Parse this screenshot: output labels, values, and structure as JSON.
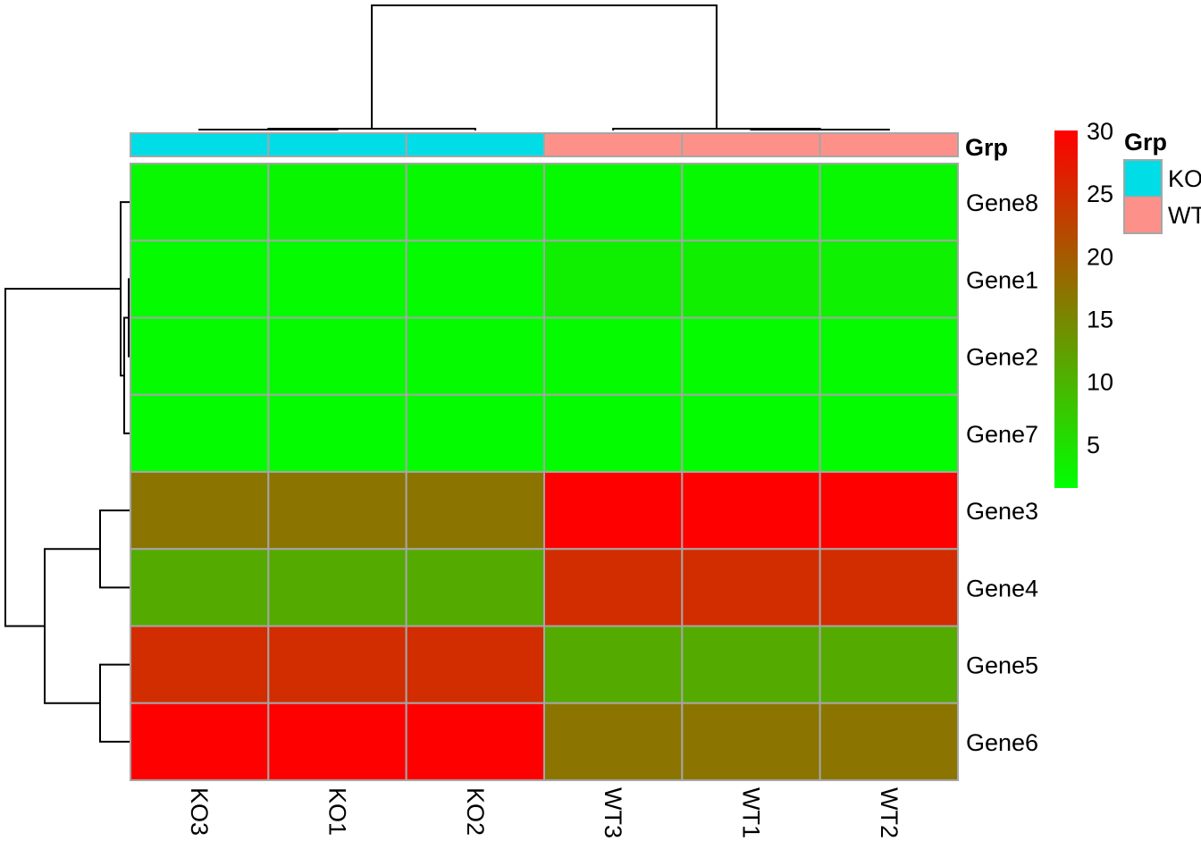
{
  "chart_data": {
    "type": "heatmap",
    "columns": [
      "KO3",
      "KO1",
      "KO2",
      "WT3",
      "WT1",
      "WT2"
    ],
    "rows": [
      "Gene8",
      "Gene1",
      "Gene2",
      "Gene7",
      "Gene3",
      "Gene4",
      "Gene5",
      "Gene6"
    ],
    "values": [
      [
        2.3,
        2.4,
        2.2,
        2.1,
        2.2,
        2.3
      ],
      [
        2.0,
        1.9,
        2.0,
        3.2,
        3.3,
        3.1
      ],
      [
        1.9,
        1.9,
        1.9,
        2.0,
        2.0,
        2.0
      ],
      [
        1.8,
        1.8,
        1.8,
        1.8,
        1.8,
        1.8
      ],
      [
        17,
        17,
        17,
        30,
        30,
        30
      ],
      [
        11,
        11,
        11,
        25,
        25,
        25
      ],
      [
        25,
        25,
        25,
        11,
        11,
        11
      ],
      [
        30,
        30,
        30,
        17,
        17,
        17
      ]
    ],
    "color_scale": {
      "min": 1.5,
      "max": 30,
      "colors": [
        "#00ff00",
        "#808000",
        "#ff0000"
      ],
      "ticks": [
        5,
        10,
        15,
        20,
        25,
        30
      ]
    },
    "annotation": {
      "title": "Grp",
      "values": [
        "KO",
        "KO",
        "KO",
        "WT",
        "WT",
        "WT"
      ],
      "legend": [
        {
          "label": "KO",
          "color": "#00dde6"
        },
        {
          "label": "WT",
          "color": "#fd918a"
        }
      ]
    },
    "legend_title": "Grp",
    "column_dendrogram": true,
    "row_dendrogram": true
  }
}
